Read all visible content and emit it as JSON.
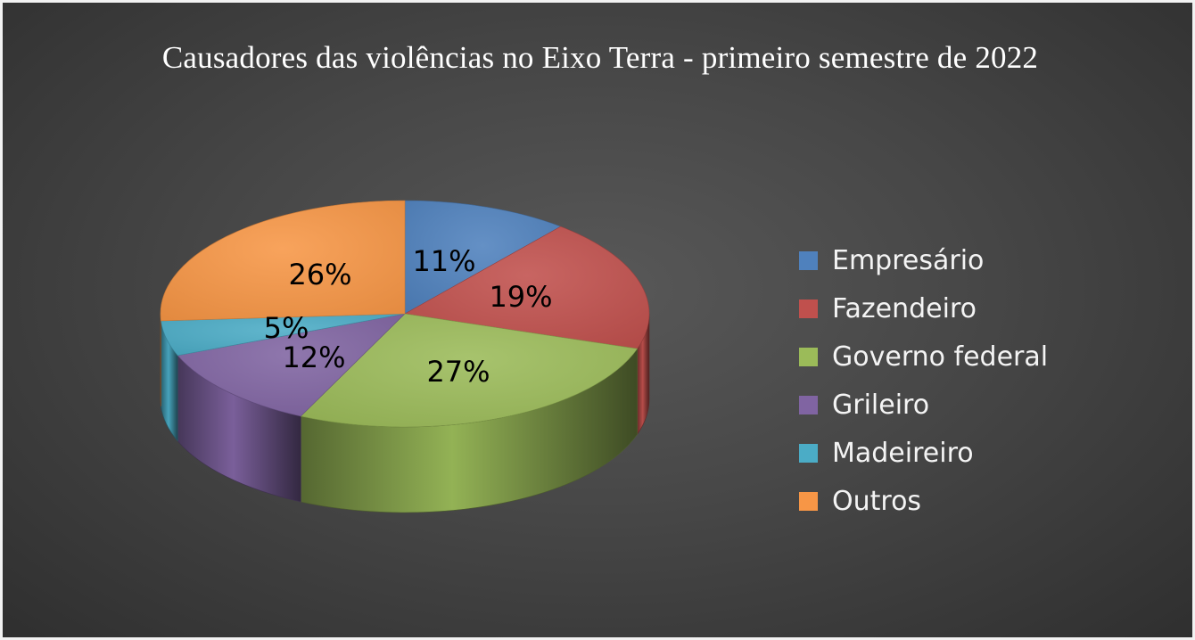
{
  "chart_data": {
    "type": "pie",
    "title": "Causadores das violências no Eixo Terra - primeiro semestre de 2022",
    "style": "3d-pie",
    "legend_position": "right",
    "slices": [
      {
        "name": "Empresário",
        "value": 11,
        "label": "11%",
        "color": "#4f81bd"
      },
      {
        "name": "Fazendeiro",
        "value": 19,
        "label": "19%",
        "color": "#c0504d"
      },
      {
        "name": "Governo federal",
        "value": 27,
        "label": "27%",
        "color": "#9bbb59"
      },
      {
        "name": "Grileiro",
        "value": 12,
        "label": "12%",
        "color": "#8064a2"
      },
      {
        "name": "Madeireiro",
        "value": 5,
        "label": "5%",
        "color": "#4bacc6"
      },
      {
        "name": "Outros",
        "value": 26,
        "label": "26%",
        "color": "#f79646"
      }
    ]
  }
}
